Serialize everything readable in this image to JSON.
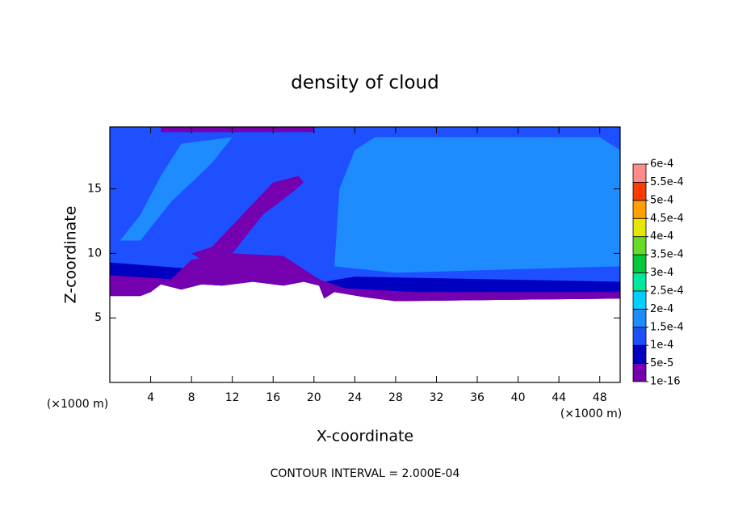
{
  "chart_data": {
    "type": "contour",
    "title": "density of cloud",
    "x_label": "X-coordinate",
    "y_label": "Z-coordinate",
    "x_unit": "(×1000 m)",
    "y_unit": "(×1000 m)",
    "footer": "CONTOUR INTERVAL = 2.000E-04",
    "xlim": [
      0,
      50
    ],
    "ylim": [
      0,
      19.8
    ],
    "xticks": [
      4,
      8,
      12,
      16,
      20,
      24,
      28,
      32,
      36,
      40,
      44,
      48
    ],
    "yticks": [
      5,
      10,
      15
    ],
    "colorbar": {
      "ticks": [
        {
          "value": 1e-16,
          "label": "1e-16"
        },
        {
          "value": 5e-05,
          "label": "5e-5"
        },
        {
          "value": 0.0001,
          "label": "1e-4"
        },
        {
          "value": 0.00015,
          "label": "1.5e-4"
        },
        {
          "value": 0.0002,
          "label": "2e-4"
        },
        {
          "value": 0.00025,
          "label": "2.5e-4"
        },
        {
          "value": 0.0003,
          "label": "3e-4"
        },
        {
          "value": 0.00035,
          "label": "3.5e-4"
        },
        {
          "value": 0.0004,
          "label": "4e-4"
        },
        {
          "value": 0.00045,
          "label": "4.5e-4"
        },
        {
          "value": 0.0005,
          "label": "5e-4"
        },
        {
          "value": 0.00055,
          "label": "5.5e-4"
        },
        {
          "value": 0.0006,
          "label": "6e-4"
        }
      ],
      "colors": [
        "#7400b0",
        "#0000c0",
        "#1e50ff",
        "#1e8cff",
        "#00d0ff",
        "#00e8a0",
        "#00c83c",
        "#64dc28",
        "#e6e600",
        "#ffa000",
        "#ff3c00",
        "#ff8c8c"
      ]
    },
    "regions": [
      {
        "level": 0.0001,
        "x": [
          0,
          50,
          50,
          28,
          25,
          22,
          21,
          20.5,
          19,
          17,
          14,
          11,
          9,
          7,
          5,
          4,
          3,
          0
        ],
        "z": [
          19.8,
          19.8,
          6.5,
          6.3,
          6.6,
          7.0,
          6.5,
          7.5,
          7.8,
          7.5,
          7.8,
          7.5,
          7.6,
          7.2,
          7.6,
          7.0,
          6.7,
          6.7
        ]
      },
      {
        "level": 0.00015,
        "x": [
          22,
          22.5,
          24,
          26,
          48,
          50,
          50,
          28
        ],
        "z": [
          9,
          15,
          18,
          19,
          19,
          18,
          9,
          8.5
        ]
      },
      {
        "level": 0.00015,
        "x": [
          1,
          3,
          5,
          7,
          12,
          10,
          6,
          3
        ],
        "z": [
          11,
          13,
          16,
          18.5,
          19,
          17,
          14,
          11
        ]
      },
      {
        "level": 5e-05,
        "x": [
          0,
          8,
          17,
          21,
          24,
          50,
          50,
          28,
          25,
          22,
          21,
          20.5,
          19,
          17,
          14,
          11,
          9,
          7,
          5,
          4,
          3,
          0
        ],
        "z": [
          9.3,
          8.8,
          9.5,
          7.8,
          8.2,
          7.8,
          6.5,
          6.3,
          6.6,
          7.0,
          6.5,
          7.5,
          7.8,
          7.5,
          7.8,
          7.5,
          7.6,
          7.2,
          7.6,
          7.0,
          6.7,
          6.7
        ]
      },
      {
        "level": 1e-16,
        "x": [
          0,
          6,
          8,
          12,
          17,
          20.5,
          23,
          30,
          50,
          50,
          28,
          25,
          22,
          21,
          20.5,
          19,
          17,
          14,
          11,
          9,
          7,
          5,
          4,
          3,
          0
        ],
        "z": [
          8.3,
          8.0,
          9.5,
          10,
          9.8,
          8.0,
          7.3,
          7.0,
          7.0,
          6.5,
          6.3,
          6.6,
          7.0,
          6.5,
          7.5,
          7.8,
          7.5,
          7.8,
          7.5,
          7.6,
          7.2,
          7.6,
          7.0,
          6.7,
          6.7
        ]
      },
      {
        "level": 1e-16,
        "x": [
          9,
          12,
          15,
          18,
          19,
          18.5,
          16,
          13,
          10,
          8
        ],
        "z": [
          9.5,
          10,
          13,
          14.8,
          15.5,
          16,
          15.5,
          13,
          10.5,
          10
        ]
      },
      {
        "level": 1e-16,
        "x": [
          5,
          20,
          20,
          5
        ],
        "z": [
          19.8,
          19.8,
          19.4,
          19.4
        ]
      }
    ]
  }
}
